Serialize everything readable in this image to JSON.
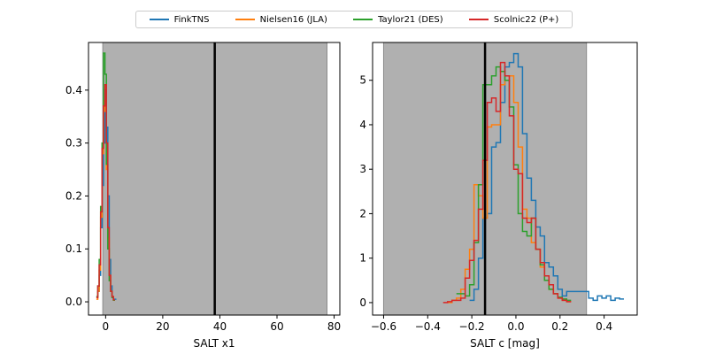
{
  "legend": {
    "placement": "top-center",
    "entries": [
      {
        "label": "FinkTNS",
        "color": "#1f77b4"
      },
      {
        "label": "Nielsen16 (JLA)",
        "color": "#ff7f0e"
      },
      {
        "label": "Taylor21 (DES)",
        "color": "#2ca02c"
      },
      {
        "label": "Scolnic22 (P+)",
        "color": "#d62728"
      }
    ]
  },
  "chart_data": [
    {
      "type": "line",
      "subtype": "step-histogram",
      "xlabel": "SALT x1",
      "ylabel": "",
      "xlim": [
        -6,
        82
      ],
      "ylim": [
        -0.025,
        0.49
      ],
      "xticks": [
        "0",
        "20",
        "40",
        "60",
        "80"
      ],
      "yticks": [
        "0.0",
        "0.1",
        "0.2",
        "0.3",
        "0.4"
      ],
      "xtick_values": [
        0,
        20,
        40,
        60,
        80
      ],
      "ytick_values": [
        0,
        0.1,
        0.2,
        0.3,
        0.4
      ],
      "shaded_range": [
        -1,
        77.5
      ],
      "shade_color": "#b0b0b0",
      "vline": 38.2,
      "series": [
        {
          "name": "FinkTNS",
          "color": "#1f77b4",
          "x": [
            -3.0,
            -2.5,
            -2.0,
            -1.5,
            -1.0,
            -0.5,
            0.0,
            0.5,
            1.0,
            1.5,
            2.0,
            2.5,
            3.0,
            3.5
          ],
          "y": [
            0.01,
            0.02,
            0.05,
            0.14,
            0.22,
            0.3,
            0.4,
            0.33,
            0.2,
            0.08,
            0.03,
            0.01,
            0.005,
            0.005
          ]
        },
        {
          "name": "Nielsen16 (JLA)",
          "color": "#ff7f0e",
          "x": [
            -3.0,
            -2.5,
            -2.0,
            -1.5,
            -1.0,
            -0.5,
            0.0,
            0.5,
            1.0,
            1.5,
            2.0,
            2.5,
            3.0
          ],
          "y": [
            0.005,
            0.02,
            0.06,
            0.16,
            0.28,
            0.38,
            0.36,
            0.25,
            0.12,
            0.05,
            0.02,
            0.01,
            0.003
          ]
        },
        {
          "name": "Taylor21 (DES)",
          "color": "#2ca02c",
          "x": [
            -3.0,
            -2.5,
            -2.0,
            -1.5,
            -1.0,
            -0.5,
            0.0,
            0.5,
            1.0,
            1.5,
            2.0,
            2.5,
            3.0
          ],
          "y": [
            0.01,
            0.03,
            0.08,
            0.18,
            0.3,
            0.47,
            0.43,
            0.26,
            0.1,
            0.04,
            0.02,
            0.008,
            0.003
          ]
        },
        {
          "name": "Scolnic22 (P+)",
          "color": "#d62728",
          "x": [
            -3.0,
            -2.5,
            -2.0,
            -1.5,
            -1.0,
            -0.5,
            0.0,
            0.5,
            1.0,
            1.5,
            2.0,
            2.5,
            3.0
          ],
          "y": [
            0.008,
            0.03,
            0.07,
            0.17,
            0.29,
            0.37,
            0.41,
            0.3,
            0.14,
            0.05,
            0.02,
            0.01,
            0.004
          ]
        }
      ]
    },
    {
      "type": "line",
      "subtype": "step-histogram",
      "xlabel": "SALT c [mag]",
      "ylabel": "",
      "xlim": [
        -0.65,
        0.55
      ],
      "ylim": [
        -0.28,
        5.85
      ],
      "xticks": [
        "−0.6",
        "−0.4",
        "−0.2",
        "0.0",
        "0.2",
        "0.4"
      ],
      "yticks": [
        "0",
        "1",
        "2",
        "3",
        "4",
        "5"
      ],
      "xtick_values": [
        -0.6,
        -0.4,
        -0.2,
        0.0,
        0.2,
        0.4
      ],
      "ytick_values": [
        0,
        1,
        2,
        3,
        4,
        5
      ],
      "shaded_range": [
        -0.6,
        0.32
      ],
      "shade_color": "#b0b0b0",
      "vline": -0.14,
      "series": [
        {
          "name": "FinkTNS",
          "color": "#1f77b4",
          "x": [
            -0.2,
            -0.18,
            -0.16,
            -0.14,
            -0.12,
            -0.1,
            -0.08,
            -0.06,
            -0.04,
            -0.02,
            0.0,
            0.02,
            0.04,
            0.06,
            0.08,
            0.1,
            0.12,
            0.14,
            0.16,
            0.18,
            0.2,
            0.22,
            0.24,
            0.26,
            0.28,
            0.3,
            0.32,
            0.34,
            0.36,
            0.38,
            0.4,
            0.42,
            0.44,
            0.46,
            0.48
          ],
          "y": [
            0.05,
            0.3,
            1.0,
            1.9,
            2.0,
            3.5,
            3.6,
            4.5,
            5.3,
            5.4,
            5.6,
            5.3,
            3.8,
            2.8,
            2.3,
            1.7,
            1.5,
            0.9,
            0.8,
            0.6,
            0.3,
            0.15,
            0.25,
            0.25,
            0.25,
            0.25,
            0.25,
            0.1,
            0.05,
            0.15,
            0.1,
            0.15,
            0.05,
            0.1,
            0.08
          ]
        },
        {
          "name": "Nielsen16 (JLA)",
          "color": "#ff7f0e",
          "x": [
            -0.3,
            -0.28,
            -0.26,
            -0.24,
            -0.22,
            -0.2,
            -0.18,
            -0.16,
            -0.14,
            -0.12,
            -0.1,
            -0.08,
            -0.06,
            -0.04,
            -0.02,
            0.0,
            0.02,
            0.04,
            0.06,
            0.08,
            0.1,
            0.12,
            0.14,
            0.16,
            0.18,
            0.2,
            0.22,
            0.24
          ],
          "y": [
            0.0,
            0.05,
            0.1,
            0.3,
            0.75,
            1.2,
            2.65,
            2.4,
            1.9,
            3.95,
            4.0,
            4.0,
            4.9,
            5.0,
            5.1,
            4.5,
            3.5,
            2.1,
            1.9,
            1.35,
            1.2,
            0.8,
            0.5,
            0.3,
            0.2,
            0.1,
            0.05,
            0.02
          ]
        },
        {
          "name": "Taylor21 (DES)",
          "color": "#2ca02c",
          "x": [
            -0.26,
            -0.24,
            -0.22,
            -0.2,
            -0.18,
            -0.16,
            -0.14,
            -0.12,
            -0.1,
            -0.08,
            -0.06,
            -0.04,
            -0.02,
            0.0,
            0.02,
            0.04,
            0.06,
            0.08,
            0.1,
            0.12,
            0.14,
            0.16,
            0.18,
            0.2,
            0.22,
            0.24
          ],
          "y": [
            0.2,
            0.2,
            0.15,
            0.4,
            1.35,
            2.65,
            4.9,
            4.9,
            5.1,
            5.3,
            5.2,
            5.0,
            4.4,
            3.1,
            2.0,
            1.6,
            1.5,
            1.9,
            1.2,
            0.85,
            0.5,
            0.3,
            0.2,
            0.12,
            0.08,
            0.05
          ]
        },
        {
          "name": "Scolnic22 (P+)",
          "color": "#d62728",
          "x": [
            -0.32,
            -0.3,
            -0.28,
            -0.26,
            -0.24,
            -0.22,
            -0.2,
            -0.18,
            -0.16,
            -0.14,
            -0.12,
            -0.1,
            -0.08,
            -0.06,
            -0.04,
            -0.02,
            0.0,
            0.02,
            0.04,
            0.06,
            0.08,
            0.1,
            0.12,
            0.14,
            0.16,
            0.18,
            0.2,
            0.22,
            0.24
          ],
          "y": [
            0.0,
            0.02,
            0.05,
            0.05,
            0.1,
            0.55,
            0.95,
            1.4,
            2.1,
            3.2,
            4.5,
            4.6,
            4.3,
            5.4,
            5.1,
            4.2,
            3.0,
            2.9,
            1.9,
            1.8,
            1.9,
            1.2,
            0.9,
            0.6,
            0.4,
            0.2,
            0.1,
            0.05,
            0.02
          ]
        }
      ]
    }
  ]
}
